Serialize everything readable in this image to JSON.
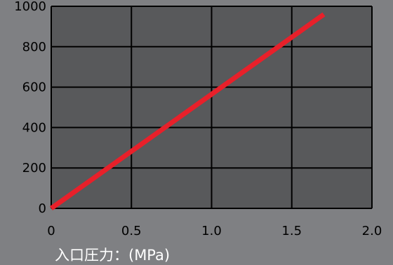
{
  "chart_data": {
    "type": "line",
    "xlabel": "入口圧力：(MPa)",
    "ylabel": "",
    "xlim": [
      0,
      2.0
    ],
    "ylim": [
      0,
      1000
    ],
    "xticks": [
      "0",
      "0.5",
      "1.0",
      "1.5",
      "2.0"
    ],
    "yticks": [
      "0",
      "200",
      "400",
      "600",
      "800",
      "1000"
    ],
    "grid": true,
    "series": [
      {
        "x": [
          0,
          1.7
        ],
        "y": [
          0,
          960
        ]
      }
    ]
  },
  "colors": {
    "background": "#7f8083",
    "plot_area": "#58595b",
    "grid": "#000000",
    "line": "#e8202a",
    "xlabel": "#ffffff"
  }
}
